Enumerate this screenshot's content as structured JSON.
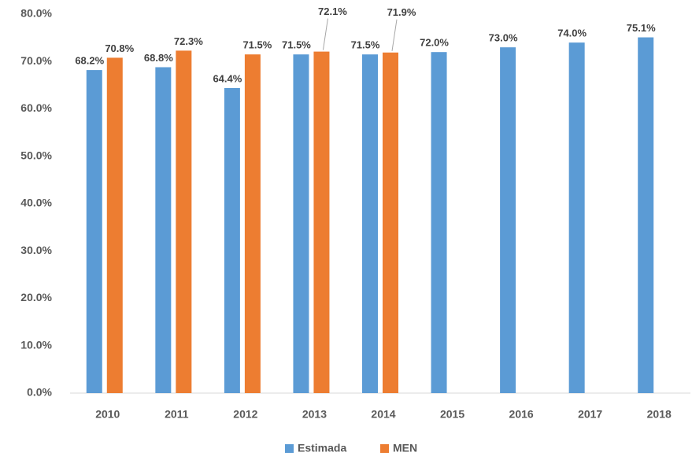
{
  "chart_data": {
    "type": "bar",
    "categories": [
      "2010",
      "2011",
      "2012",
      "2013",
      "2014",
      "2015",
      "2016",
      "2017",
      "2018"
    ],
    "series": [
      {
        "name": "Estimada",
        "color": "#5b9bd5",
        "values": [
          68.2,
          68.8,
          64.4,
          71.5,
          71.5,
          72.0,
          73.0,
          74.0,
          75.1
        ],
        "value_labels": [
          "68.2%",
          "68.8%",
          "64.4%",
          "71.5%",
          "71.5%",
          "72.0%",
          "73.0%",
          "74.0%",
          "75.1%"
        ]
      },
      {
        "name": "MEN",
        "color": "#ed7d31",
        "values": [
          70.8,
          72.3,
          71.5,
          72.1,
          71.9,
          null,
          null,
          null,
          null
        ],
        "value_labels": [
          "70.8%",
          "72.3%",
          "71.5%",
          "72.1%",
          "71.9%",
          null,
          null,
          null,
          null
        ]
      }
    ],
    "ylim": [
      0,
      80
    ],
    "yticks": [
      {
        "value": 0,
        "label": "0.0%"
      },
      {
        "value": 10,
        "label": "10.0%"
      },
      {
        "value": 20,
        "label": "20.0%"
      },
      {
        "value": 30,
        "label": "30.0%"
      },
      {
        "value": 40,
        "label": "40.0%"
      },
      {
        "value": 50,
        "label": "50.0%"
      },
      {
        "value": 60,
        "label": "60.0%"
      },
      {
        "value": 70,
        "label": "70.0%"
      },
      {
        "value": 80,
        "label": "80.0%"
      }
    ],
    "grid": false,
    "legend": "bottom"
  }
}
